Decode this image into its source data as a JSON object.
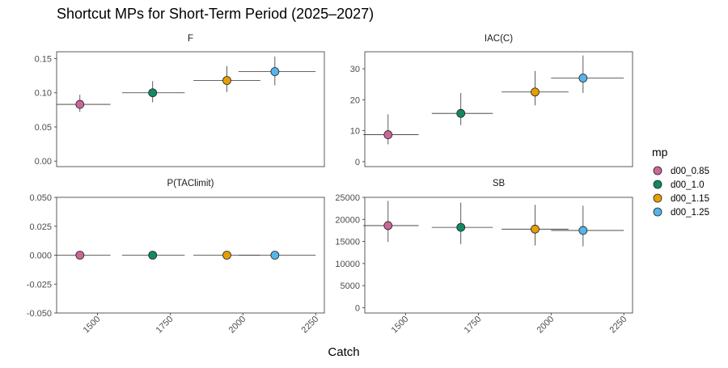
{
  "chart_data": {
    "type": "scatter",
    "title": "Shortcut MPs for Short-Term Period (2025–2027)",
    "xlabel": "Catch",
    "x_ticks": [
      1500,
      1750,
      2000,
      2250
    ],
    "xlim": [
      1360,
      2280
    ],
    "legend": {
      "title": "mp",
      "placement": "right",
      "entries": [
        {
          "name": "d00_0.85",
          "color": "#CC6699"
        },
        {
          "name": "d00_1.0",
          "color": "#118866"
        },
        {
          "name": "d00_1.15",
          "color": "#E69F00"
        },
        {
          "name": "d00_1.25",
          "color": "#56B4E9"
        }
      ]
    },
    "panels": [
      {
        "label": "F",
        "ylim": [
          -0.008,
          0.16
        ],
        "y_ticks": [
          0.0,
          0.05,
          0.1,
          0.15
        ],
        "y_tick_labels": [
          "0.00",
          "0.05",
          "0.10",
          "0.15"
        ],
        "points": [
          {
            "mp": "d00_0.85",
            "x": 1440,
            "x_low": 1360,
            "x_high": 1545,
            "y": 0.083,
            "y_low": 0.072,
            "y_high": 0.097
          },
          {
            "mp": "d00_1.0",
            "x": 1690,
            "x_low": 1585,
            "x_high": 1800,
            "y": 0.1,
            "y_low": 0.086,
            "y_high": 0.117
          },
          {
            "mp": "d00_1.15",
            "x": 1945,
            "x_low": 1830,
            "x_high": 2060,
            "y": 0.118,
            "y_low": 0.101,
            "y_high": 0.139
          },
          {
            "mp": "d00_1.25",
            "x": 2110,
            "x_low": 1985,
            "x_high": 2250,
            "y": 0.131,
            "y_low": 0.111,
            "y_high": 0.153
          }
        ]
      },
      {
        "label": "IAC(C)",
        "ylim": [
          -1.6,
          35.5
        ],
        "y_ticks": [
          0,
          10,
          20,
          30
        ],
        "y_tick_labels": [
          "0",
          "10",
          "20",
          "30"
        ],
        "points": [
          {
            "mp": "d00_0.85",
            "x": 1440,
            "x_low": 1355,
            "x_high": 1545,
            "y": 8.7,
            "y_low": 5.6,
            "y_high": 15.3
          },
          {
            "mp": "d00_1.0",
            "x": 1690,
            "x_low": 1590,
            "x_high": 1800,
            "y": 15.6,
            "y_low": 11.8,
            "y_high": 22.2
          },
          {
            "mp": "d00_1.15",
            "x": 1945,
            "x_low": 1830,
            "x_high": 2060,
            "y": 22.5,
            "y_low": 18.2,
            "y_high": 29.3
          },
          {
            "mp": "d00_1.25",
            "x": 2110,
            "x_low": 2000,
            "x_high": 2250,
            "y": 27.0,
            "y_low": 22.2,
            "y_high": 34.3
          }
        ]
      },
      {
        "label": "P(TAClimit)",
        "ylim": [
          -0.05,
          0.05
        ],
        "y_ticks": [
          -0.05,
          -0.025,
          0.0,
          0.025,
          0.05
        ],
        "y_tick_labels": [
          "-0.050",
          "-0.025",
          "0.000",
          "0.025",
          "0.050"
        ],
        "points": [
          {
            "mp": "d00_0.85",
            "x": 1440,
            "x_low": 1360,
            "x_high": 1545,
            "y": 0.0,
            "y_low": 0.0,
            "y_high": 0.0
          },
          {
            "mp": "d00_1.0",
            "x": 1690,
            "x_low": 1585,
            "x_high": 1800,
            "y": 0.0,
            "y_low": 0.0,
            "y_high": 0.0
          },
          {
            "mp": "d00_1.15",
            "x": 1945,
            "x_low": 1830,
            "x_high": 2060,
            "y": 0.0,
            "y_low": 0.0,
            "y_high": 0.0
          },
          {
            "mp": "d00_1.25",
            "x": 2110,
            "x_low": 1985,
            "x_high": 2250,
            "y": 0.0,
            "y_low": 0.0,
            "y_high": 0.0
          }
        ]
      },
      {
        "label": "SB",
        "ylim": [
          -1200,
          25000
        ],
        "y_ticks": [
          0,
          5000,
          10000,
          15000,
          20000,
          25000
        ],
        "y_tick_labels": [
          "0",
          "5000",
          "10000",
          "15000",
          "20000",
          "25000"
        ],
        "points": [
          {
            "mp": "d00_0.85",
            "x": 1440,
            "x_low": 1355,
            "x_high": 1545,
            "y": 18600,
            "y_low": 14900,
            "y_high": 24200
          },
          {
            "mp": "d00_1.0",
            "x": 1690,
            "x_low": 1590,
            "x_high": 1800,
            "y": 18200,
            "y_low": 14400,
            "y_high": 23800
          },
          {
            "mp": "d00_1.15",
            "x": 1945,
            "x_low": 1830,
            "x_high": 2060,
            "y": 17800,
            "y_low": 14100,
            "y_high": 23300
          },
          {
            "mp": "d00_1.25",
            "x": 2110,
            "x_low": 2000,
            "x_high": 2250,
            "y": 17500,
            "y_low": 13900,
            "y_high": 23100
          }
        ]
      }
    ]
  }
}
